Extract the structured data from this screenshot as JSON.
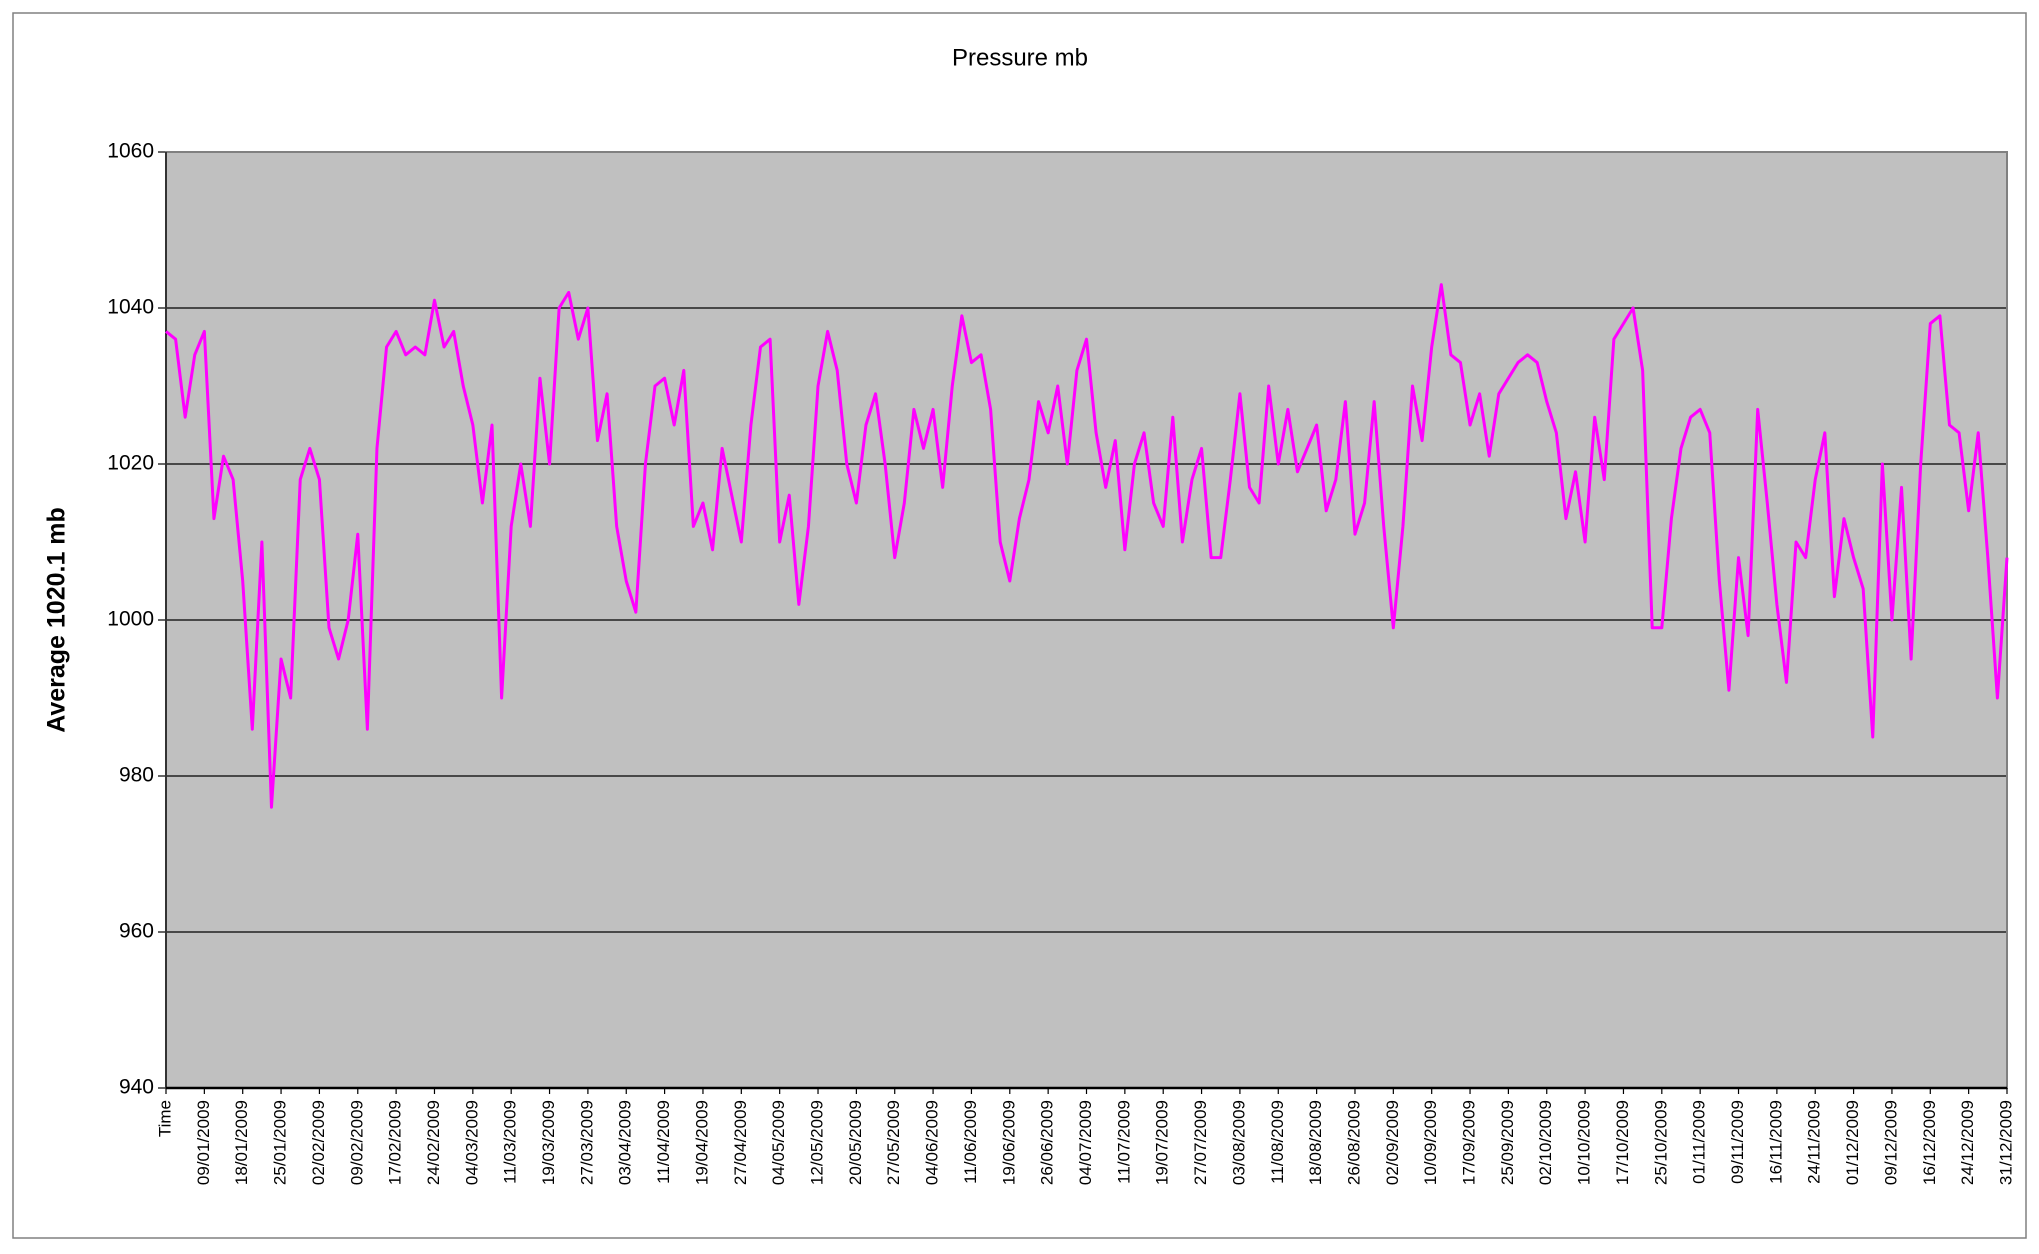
{
  "chart_data": {
    "type": "line",
    "title": "Pressure mb",
    "ylabel": "Average 1020.1 mb",
    "categories": [
      "Time",
      null,
      null,
      null,
      "09/01/2009",
      null,
      null,
      null,
      "18/01/2009",
      null,
      null,
      null,
      "25/01/2009",
      null,
      null,
      null,
      "02/02/2009",
      null,
      null,
      null,
      "09/02/2009",
      null,
      null,
      null,
      "17/02/2009",
      null,
      null,
      null,
      "24/02/2009",
      null,
      null,
      null,
      "04/03/2009",
      null,
      null,
      null,
      "11/03/2009",
      null,
      null,
      null,
      "19/03/2009",
      null,
      null,
      null,
      "27/03/2009",
      null,
      null,
      null,
      "03/04/2009",
      null,
      null,
      null,
      "11/04/2009",
      null,
      null,
      null,
      "19/04/2009",
      null,
      null,
      null,
      "27/04/2009",
      null,
      null,
      null,
      "04/05/2009",
      null,
      null,
      null,
      "12/05/2009",
      null,
      null,
      null,
      "20/05/2009",
      null,
      null,
      null,
      "27/05/2009",
      null,
      null,
      null,
      "04/06/2009",
      null,
      null,
      null,
      "11/06/2009",
      null,
      null,
      null,
      "19/06/2009",
      null,
      null,
      null,
      "26/06/2009",
      null,
      null,
      null,
      "04/07/2009",
      null,
      null,
      null,
      "11/07/2009",
      null,
      null,
      null,
      "19/07/2009",
      null,
      null,
      null,
      "27/07/2009",
      null,
      null,
      null,
      "03/08/2009",
      null,
      null,
      null,
      "11/08/2009",
      null,
      null,
      null,
      "18/08/2009",
      null,
      null,
      null,
      "26/08/2009",
      null,
      null,
      null,
      "02/09/2009",
      null,
      null,
      null,
      "10/09/2009",
      null,
      null,
      null,
      "17/09/2009",
      null,
      null,
      null,
      "25/09/2009",
      null,
      null,
      null,
      "02/10/2009",
      null,
      null,
      null,
      "10/10/2009",
      null,
      null,
      null,
      "17/10/2009",
      null,
      null,
      null,
      "25/10/2009",
      null,
      null,
      null,
      "01/11/2009",
      null,
      null,
      null,
      "09/11/2009",
      null,
      null,
      null,
      "16/11/2009",
      null,
      null,
      null,
      "24/11/2009",
      null,
      null,
      null,
      "01/12/2009",
      null,
      null,
      null,
      "09/12/2009",
      null,
      null,
      null,
      "16/12/2009",
      null,
      null,
      null,
      "24/12/2009",
      null,
      null,
      null,
      "31/12/2009"
    ],
    "series": [
      {
        "color": "#ff00ff",
        "values": [
          1037,
          1036,
          1026,
          1034,
          1037,
          1013,
          1021,
          1018,
          1005,
          986,
          1010,
          976,
          995,
          990,
          1018,
          1022,
          1018,
          999,
          995,
          1000,
          1011,
          986,
          1022,
          1035,
          1037,
          1034,
          1035,
          1034,
          1041,
          1035,
          1037,
          1030,
          1025,
          1015,
          1025,
          990,
          1012,
          1020,
          1012,
          1031,
          1020,
          1040,
          1042,
          1036,
          1040,
          1023,
          1029,
          1012,
          1005,
          1001,
          1020,
          1030,
          1031,
          1025,
          1032,
          1012,
          1015,
          1009,
          1022,
          1016,
          1010,
          1025,
          1035,
          1036,
          1010,
          1016,
          1002,
          1012,
          1030,
          1037,
          1032,
          1020,
          1015,
          1025,
          1029,
          1020,
          1008,
          1015,
          1027,
          1022,
          1027,
          1017,
          1030,
          1039,
          1033,
          1034,
          1027,
          1010,
          1005,
          1013,
          1018,
          1028,
          1024,
          1030,
          1020,
          1032,
          1036,
          1024,
          1017,
          1023,
          1009,
          1020,
          1024,
          1015,
          1012,
          1026,
          1010,
          1018,
          1022,
          1008,
          1008,
          1018,
          1029,
          1017,
          1015,
          1030,
          1020,
          1027,
          1019,
          1022,
          1025,
          1014,
          1018,
          1028,
          1011,
          1015,
          1028,
          1012,
          999,
          1012,
          1030,
          1023,
          1035,
          1043,
          1034,
          1033,
          1025,
          1029,
          1021,
          1029,
          1031,
          1033,
          1034,
          1033,
          1028,
          1024,
          1013,
          1019,
          1010,
          1026,
          1018,
          1036,
          1038,
          1040,
          1032,
          999,
          999,
          1013,
          1022,
          1026,
          1027,
          1024,
          1005,
          991,
          1008,
          998,
          1027,
          1015,
          1002,
          992,
          1010,
          1008,
          1018,
          1024,
          1003,
          1013,
          1008,
          1004,
          985,
          1020,
          1000,
          1017,
          995,
          1020,
          1038,
          1039,
          1025,
          1024,
          1014,
          1024,
          1008,
          990,
          1008
        ]
      }
    ],
    "ylim": [
      940,
      1060
    ],
    "yticks": [
      940,
      960,
      980,
      1000,
      1020,
      1040,
      1060
    ],
    "grid": true,
    "plot_background": "#c0c0c0"
  }
}
